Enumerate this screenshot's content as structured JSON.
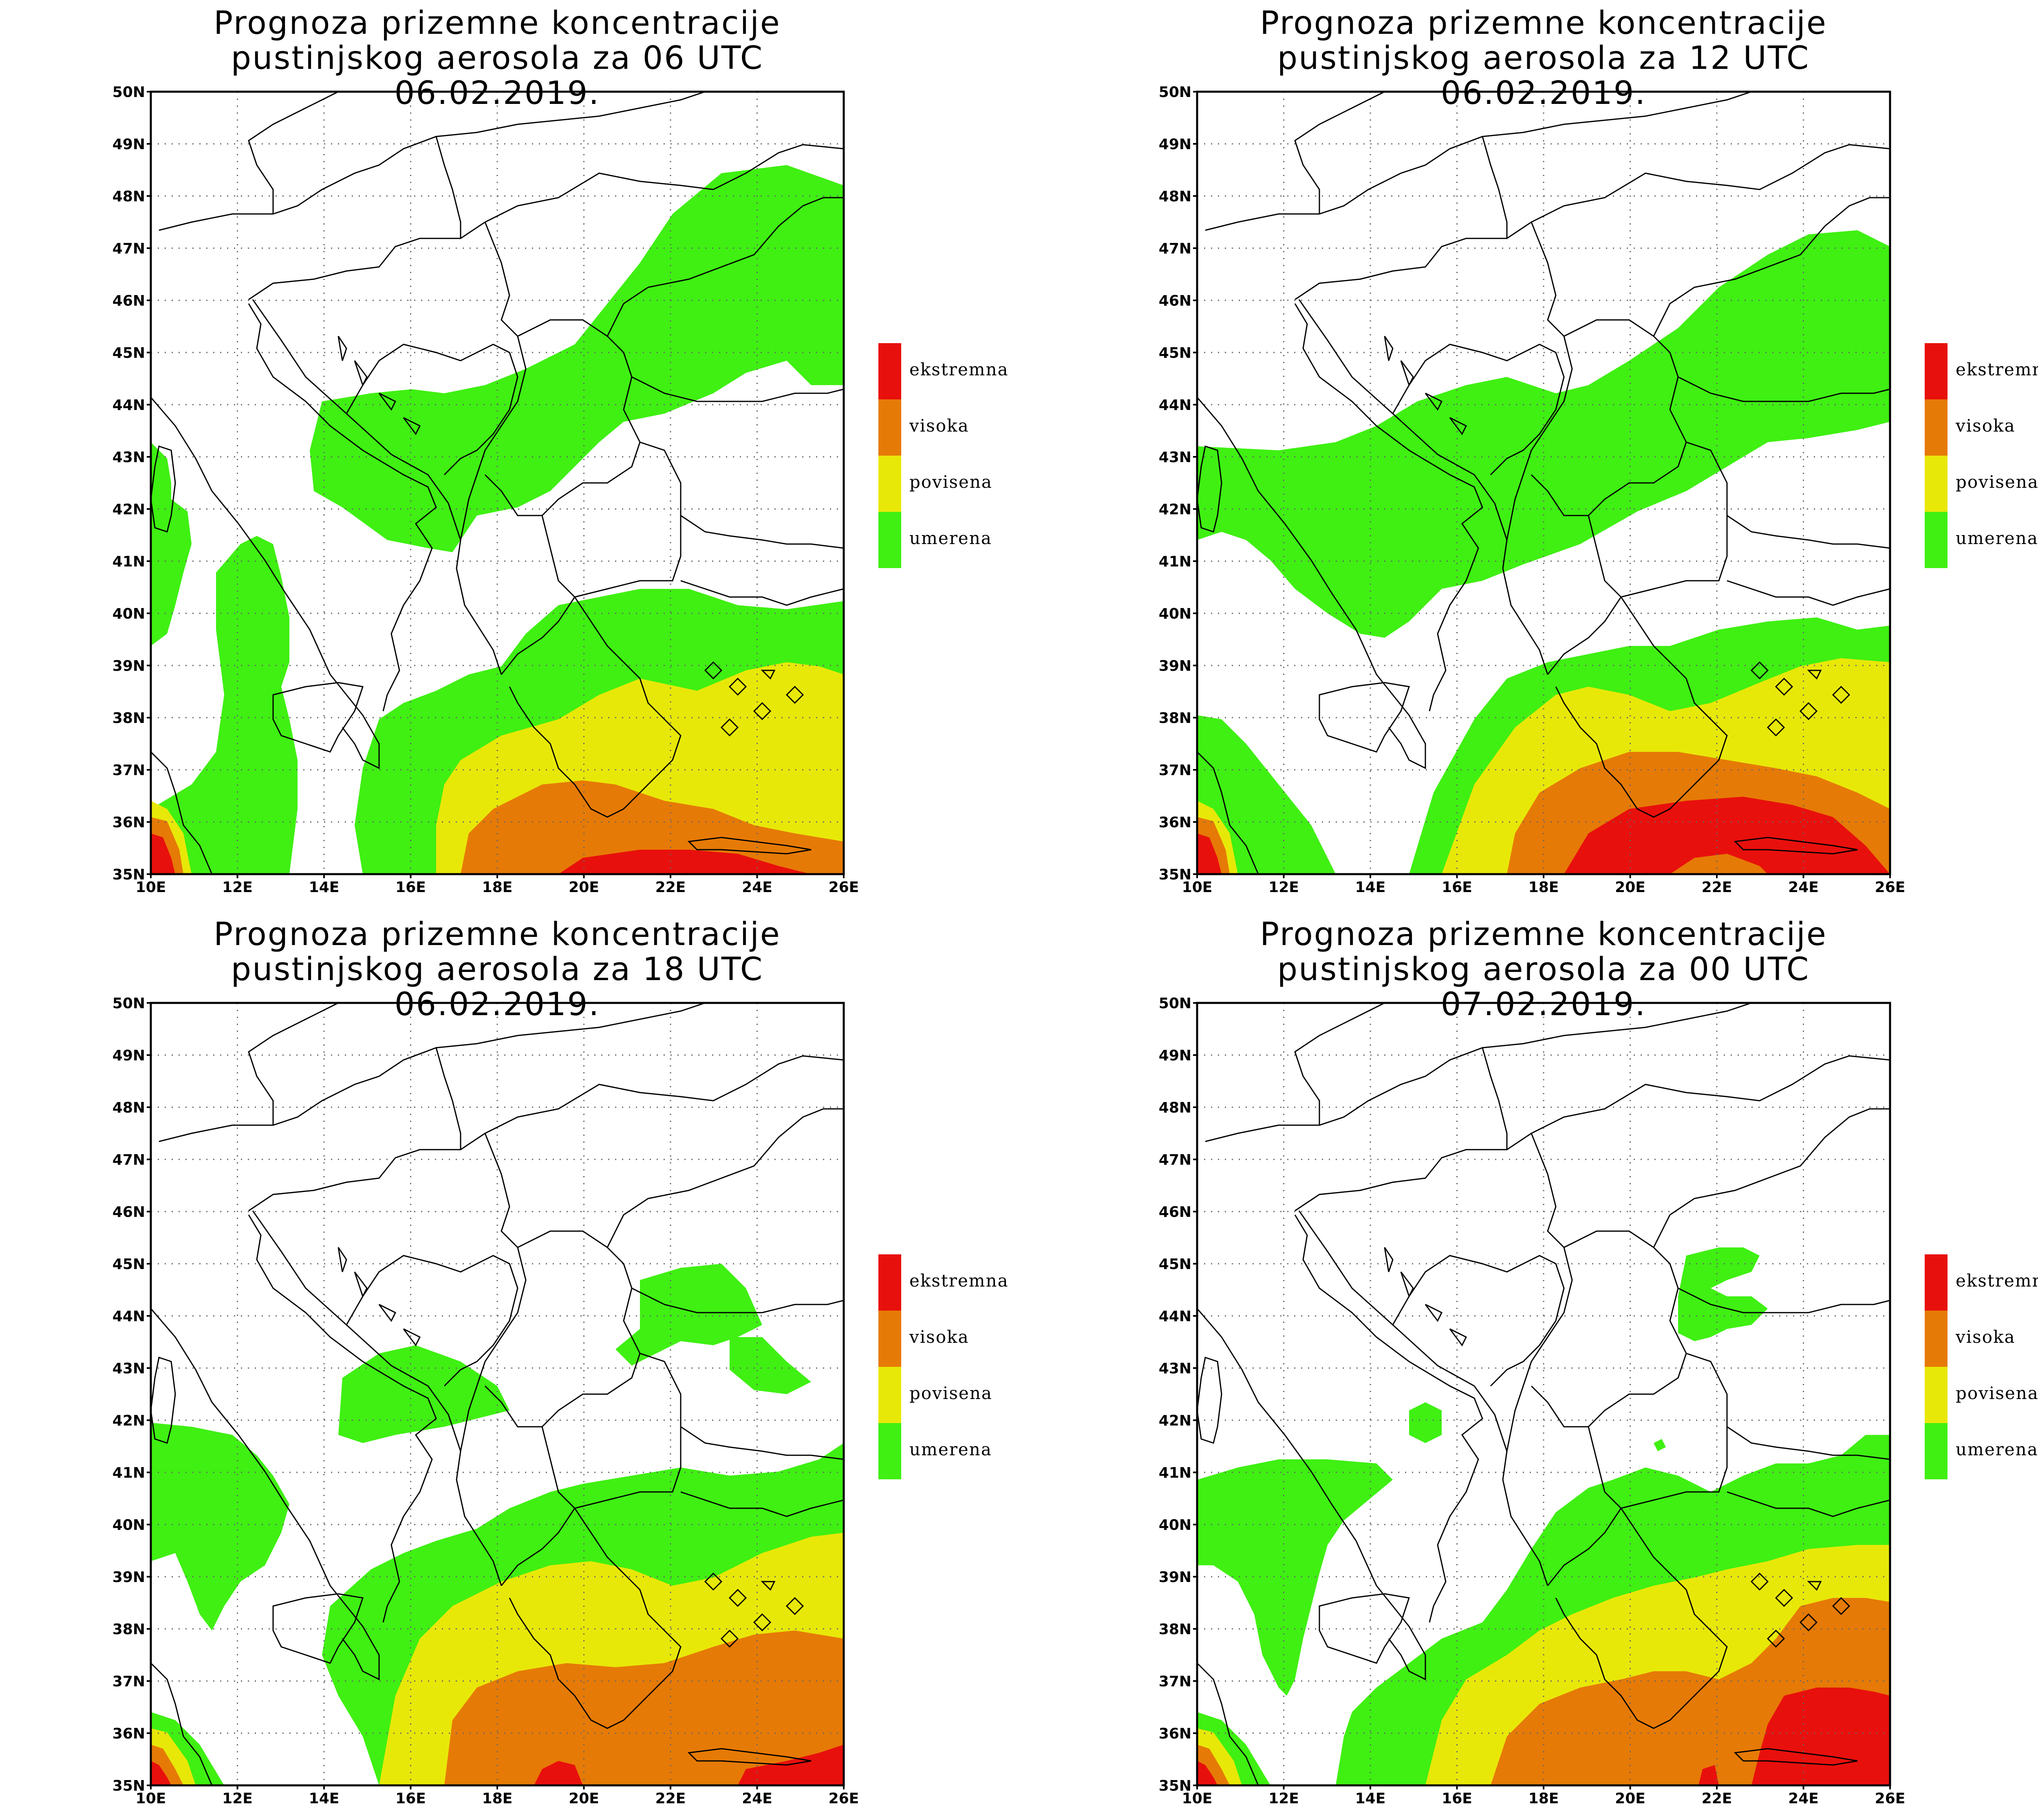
{
  "panels": [
    {
      "title_line1": "Prognoza prizemne koncentracije",
      "title_line2": "pustinjskog aerosola za 06 UTC 06.02.2019."
    },
    {
      "title_line1": "Prognoza prizemne koncentracije",
      "title_line2": "pustinjskog aerosola za 12 UTC 06.02.2019."
    },
    {
      "title_line1": "Prognoza prizemne koncentracije",
      "title_line2": "pustinjskog aerosola za 18 UTC 06.02.2019."
    },
    {
      "title_line1": "Prognoza prizemne koncentracije",
      "title_line2": "pustinjskog aerosola za 00 UTC 07.02.2019."
    }
  ],
  "axes": {
    "lat_labels": [
      "50N",
      "49N",
      "48N",
      "47N",
      "46N",
      "45N",
      "44N",
      "43N",
      "42N",
      "41N",
      "40N",
      "39N",
      "38N",
      "37N",
      "36N",
      "35N"
    ],
    "lon_labels": [
      "10E",
      "12E",
      "14E",
      "16E",
      "18E",
      "20E",
      "22E",
      "24E",
      "26E"
    ],
    "lat_range": [
      35,
      50
    ],
    "lon_range": [
      10,
      26
    ]
  },
  "legend": [
    {
      "label": "ekstremna",
      "color": "#e8100c"
    },
    {
      "label": "visoka",
      "color": "#e67a06"
    },
    {
      "label": "povisena",
      "color": "#e8e808"
    },
    {
      "label": "umerena",
      "color": "#3ff012"
    }
  ],
  "colors": {
    "background": "#ffffff",
    "borders": "#000000",
    "grid": "#666666"
  }
}
